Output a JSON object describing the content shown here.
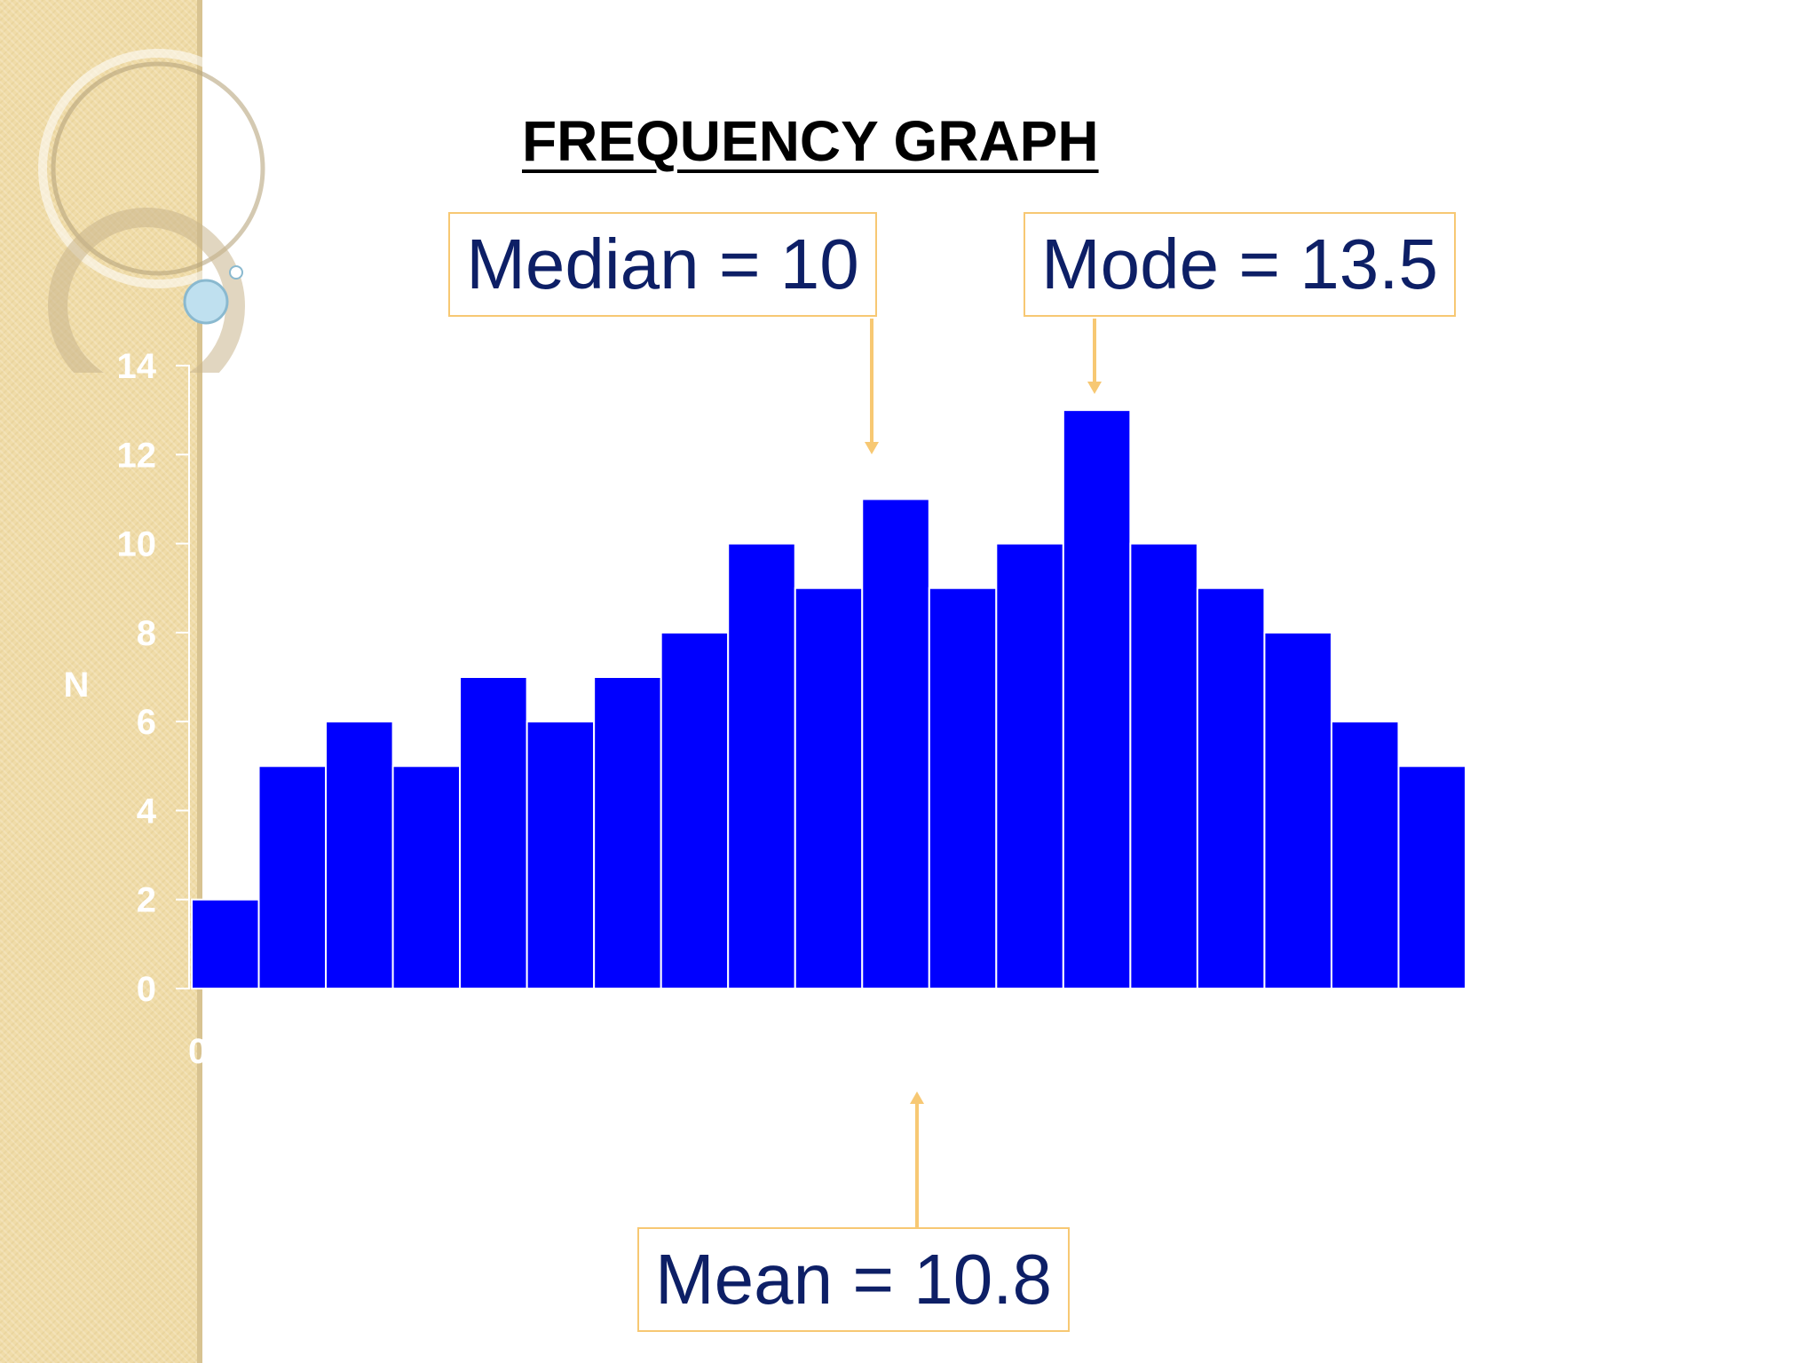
{
  "slide": {
    "title": "FREQUENCY GRAPH",
    "colors": {
      "bar": "#0000ff",
      "sidebar": "#f0dca8",
      "callout_border": "#f7c873",
      "callout_text": "#0d1f66",
      "arrow": "#f7c873"
    }
  },
  "annotations": {
    "median": "Median = 10",
    "mode": "Mode = 13.5",
    "mean": "Mean = 10.8"
  },
  "chart_data": {
    "type": "bar",
    "title": "FREQUENCY GRAPH",
    "xlabel": "",
    "ylabel": "N",
    "ylim": [
      0,
      14
    ],
    "y_ticks": [
      "0",
      "2",
      "4",
      "6",
      "8",
      "10",
      "12",
      "14"
    ],
    "x_tick_first": "0",
    "grid": false,
    "values": [
      2,
      5,
      6,
      5,
      7,
      6,
      7,
      8,
      10,
      9,
      11,
      9,
      10,
      13,
      10,
      9,
      8,
      6,
      5
    ]
  }
}
